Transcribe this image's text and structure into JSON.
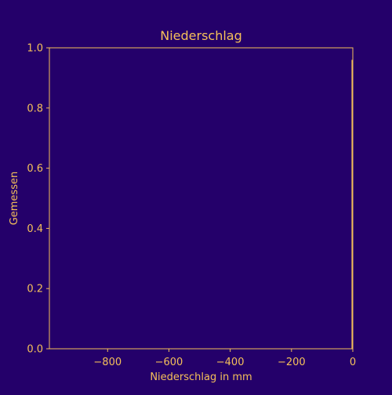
{
  "colors": {
    "background": "#24006a",
    "foreground": "#f5c05a"
  },
  "chart_data": {
    "type": "line",
    "title": "Niederschlag",
    "xlabel": "Niederschlag in mm",
    "ylabel": "Gemessen",
    "xlim": [
      -990,
      0
    ],
    "ylim": [
      0,
      1
    ],
    "x_ticks": [
      -800,
      -600,
      -400,
      -200,
      0
    ],
    "x_tick_labels": [
      "−800",
      "−600",
      "−400",
      "−200",
      "0"
    ],
    "y_ticks": [
      0,
      0.2,
      0.4,
      0.6,
      0.8,
      1.0
    ],
    "y_tick_labels": [
      "0.0",
      "0.2",
      "0.4",
      "0.6",
      "0.8",
      "1.0"
    ],
    "grid": false,
    "legend": "none",
    "series": [
      {
        "x": [
          -2,
          -2
        ],
        "y": [
          0,
          0.96
        ]
      }
    ]
  }
}
